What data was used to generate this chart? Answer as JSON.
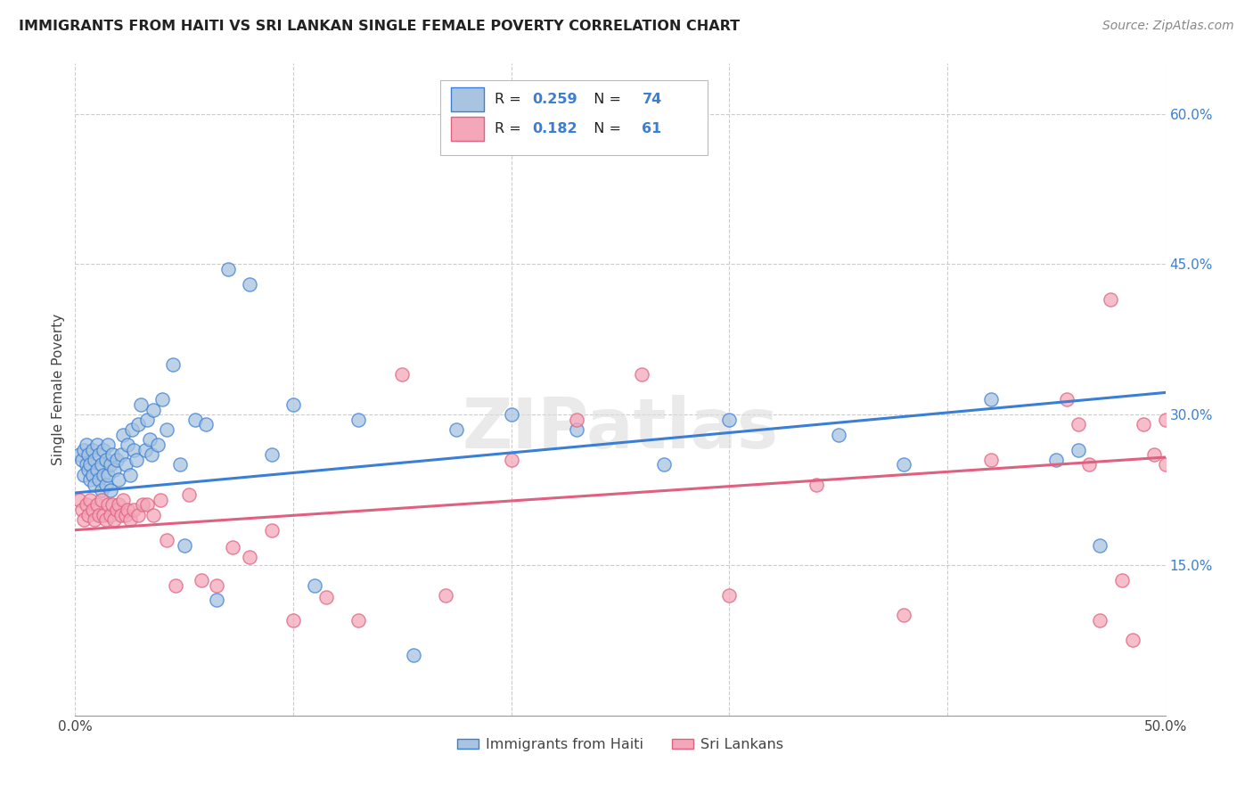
{
  "title": "IMMIGRANTS FROM HAITI VS SRI LANKAN SINGLE FEMALE POVERTY CORRELATION CHART",
  "source": "Source: ZipAtlas.com",
  "ylabel": "Single Female Poverty",
  "xlim": [
    0.0,
    0.5
  ],
  "ylim": [
    0.0,
    0.65
  ],
  "xtick_positions": [
    0.0,
    0.1,
    0.2,
    0.3,
    0.4,
    0.5
  ],
  "xticklabels": [
    "0.0%",
    "",
    "",
    "",
    "",
    "50.0%"
  ],
  "ytick_positions": [
    0.15,
    0.3,
    0.45,
    0.6
  ],
  "ytick_labels": [
    "15.0%",
    "30.0%",
    "45.0%",
    "60.0%"
  ],
  "haiti_color": "#a8c4e0",
  "sri_lanka_color": "#f4a7b9",
  "haiti_line_color": "#3a7fd5",
  "sri_lanka_line_color": "#e06080",
  "R_haiti": 0.259,
  "N_haiti": 74,
  "R_sri_lanka": 0.182,
  "N_sri_lanka": 61,
  "legend_labels": [
    "Immigrants from Haiti",
    "Sri Lankans"
  ],
  "watermark": "ZIPatlas",
  "haiti_intercept": 0.222,
  "haiti_slope": 0.2,
  "sri_lanka_intercept": 0.185,
  "sri_lanka_slope": 0.145,
  "haiti_x": [
    0.002,
    0.003,
    0.004,
    0.004,
    0.005,
    0.005,
    0.006,
    0.006,
    0.007,
    0.007,
    0.008,
    0.008,
    0.009,
    0.009,
    0.01,
    0.01,
    0.011,
    0.011,
    0.012,
    0.012,
    0.013,
    0.013,
    0.014,
    0.014,
    0.015,
    0.015,
    0.016,
    0.016,
    0.017,
    0.018,
    0.019,
    0.02,
    0.021,
    0.022,
    0.023,
    0.024,
    0.025,
    0.026,
    0.027,
    0.028,
    0.029,
    0.03,
    0.032,
    0.033,
    0.034,
    0.035,
    0.036,
    0.038,
    0.04,
    0.042,
    0.045,
    0.048,
    0.05,
    0.055,
    0.06,
    0.065,
    0.07,
    0.08,
    0.09,
    0.1,
    0.11,
    0.13,
    0.155,
    0.175,
    0.2,
    0.23,
    0.27,
    0.3,
    0.35,
    0.38,
    0.42,
    0.45,
    0.46,
    0.47
  ],
  "haiti_y": [
    0.26,
    0.255,
    0.24,
    0.265,
    0.25,
    0.27,
    0.245,
    0.26,
    0.235,
    0.25,
    0.24,
    0.265,
    0.23,
    0.255,
    0.245,
    0.27,
    0.235,
    0.26,
    0.225,
    0.25,
    0.24,
    0.265,
    0.23,
    0.255,
    0.24,
    0.27,
    0.225,
    0.25,
    0.26,
    0.245,
    0.255,
    0.235,
    0.26,
    0.28,
    0.25,
    0.27,
    0.24,
    0.285,
    0.265,
    0.255,
    0.29,
    0.31,
    0.265,
    0.295,
    0.275,
    0.26,
    0.305,
    0.27,
    0.315,
    0.285,
    0.35,
    0.25,
    0.17,
    0.295,
    0.29,
    0.115,
    0.445,
    0.43,
    0.26,
    0.31,
    0.13,
    0.295,
    0.06,
    0.285,
    0.3,
    0.285,
    0.25,
    0.295,
    0.28,
    0.25,
    0.315,
    0.255,
    0.265,
    0.17
  ],
  "sri_lanka_x": [
    0.002,
    0.003,
    0.004,
    0.005,
    0.006,
    0.007,
    0.008,
    0.009,
    0.01,
    0.011,
    0.012,
    0.013,
    0.014,
    0.015,
    0.016,
    0.017,
    0.018,
    0.019,
    0.02,
    0.021,
    0.022,
    0.023,
    0.024,
    0.025,
    0.027,
    0.029,
    0.031,
    0.033,
    0.036,
    0.039,
    0.042,
    0.046,
    0.052,
    0.058,
    0.065,
    0.072,
    0.08,
    0.09,
    0.1,
    0.115,
    0.13,
    0.15,
    0.17,
    0.2,
    0.23,
    0.26,
    0.3,
    0.34,
    0.38,
    0.42,
    0.455,
    0.46,
    0.465,
    0.47,
    0.475,
    0.48,
    0.485,
    0.49,
    0.495,
    0.5,
    0.5
  ],
  "sri_lanka_y": [
    0.215,
    0.205,
    0.195,
    0.21,
    0.2,
    0.215,
    0.205,
    0.195,
    0.21,
    0.2,
    0.215,
    0.2,
    0.195,
    0.21,
    0.2,
    0.21,
    0.195,
    0.205,
    0.21,
    0.2,
    0.215,
    0.2,
    0.205,
    0.195,
    0.205,
    0.2,
    0.21,
    0.21,
    0.2,
    0.215,
    0.175,
    0.13,
    0.22,
    0.135,
    0.13,
    0.168,
    0.158,
    0.185,
    0.095,
    0.118,
    0.095,
    0.34,
    0.12,
    0.255,
    0.295,
    0.34,
    0.12,
    0.23,
    0.1,
    0.255,
    0.315,
    0.29,
    0.25,
    0.095,
    0.415,
    0.135,
    0.075,
    0.29,
    0.26,
    0.295,
    0.25
  ]
}
